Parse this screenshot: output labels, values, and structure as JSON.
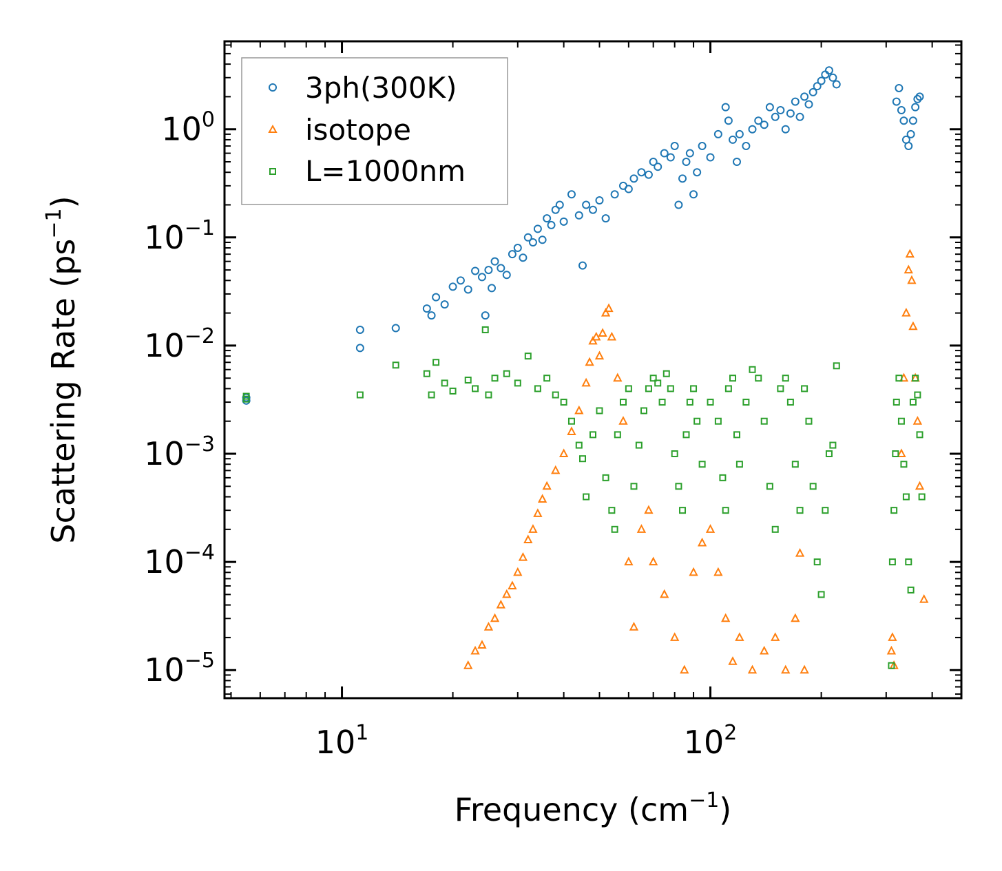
{
  "chart_data": {
    "type": "scatter",
    "title": "",
    "xlabel": "Frequency (cm",
    "xlabel_sup": "−1",
    "xlabel_end": ")",
    "ylabel": "Scattering Rate (ps",
    "ylabel_sup": "−1",
    "ylabel_end": ")",
    "xscale": "log",
    "yscale": "log",
    "xlim": [
      4.8,
      480
    ],
    "ylim": [
      5.5e-06,
      6.5
    ],
    "x_ticks": [
      {
        "value": 10,
        "base": "10",
        "exp": "1"
      },
      {
        "value": 100,
        "base": "10",
        "exp": "2"
      }
    ],
    "y_ticks": [
      {
        "value": 1,
        "base": "10",
        "exp": "0"
      },
      {
        "value": 0.1,
        "base": "10",
        "exp": "−1"
      },
      {
        "value": 0.01,
        "base": "10",
        "exp": "−2"
      },
      {
        "value": 0.001,
        "base": "10",
        "exp": "−3"
      },
      {
        "value": 0.0001,
        "base": "10",
        "exp": "−4"
      },
      {
        "value": 1e-05,
        "base": "10",
        "exp": "−5"
      }
    ],
    "legend_position": "upper-left",
    "series": [
      {
        "name": "3ph(300K)",
        "marker": "circle",
        "color": "#1f77b4",
        "points": [
          [
            5.5,
            0.0033
          ],
          [
            5.5,
            0.0031
          ],
          [
            11.2,
            0.0095
          ],
          [
            11.2,
            0.014
          ],
          [
            14,
            0.0145
          ],
          [
            17,
            0.022
          ],
          [
            17.5,
            0.019
          ],
          [
            18,
            0.028
          ],
          [
            19,
            0.024
          ],
          [
            20,
            0.035
          ],
          [
            21,
            0.04
          ],
          [
            22,
            0.033
          ],
          [
            23,
            0.049
          ],
          [
            24,
            0.043
          ],
          [
            24.5,
            0.019
          ],
          [
            25,
            0.05
          ],
          [
            25.5,
            0.034
          ],
          [
            26,
            0.06
          ],
          [
            27,
            0.052
          ],
          [
            28,
            0.045
          ],
          [
            29,
            0.07
          ],
          [
            30,
            0.08
          ],
          [
            31,
            0.065
          ],
          [
            32,
            0.1
          ],
          [
            33,
            0.09
          ],
          [
            34,
            0.12
          ],
          [
            35,
            0.095
          ],
          [
            36,
            0.15
          ],
          [
            37,
            0.13
          ],
          [
            38,
            0.18
          ],
          [
            39,
            0.2
          ],
          [
            40,
            0.14
          ],
          [
            42,
            0.25
          ],
          [
            44,
            0.16
          ],
          [
            45,
            0.055
          ],
          [
            46,
            0.2
          ],
          [
            48,
            0.18
          ],
          [
            50,
            0.22
          ],
          [
            52,
            0.15
          ],
          [
            55,
            0.25
          ],
          [
            58,
            0.3
          ],
          [
            60,
            0.28
          ],
          [
            62,
            0.35
          ],
          [
            65,
            0.4
          ],
          [
            68,
            0.38
          ],
          [
            70,
            0.5
          ],
          [
            72,
            0.45
          ],
          [
            75,
            0.6
          ],
          [
            78,
            0.55
          ],
          [
            80,
            0.7
          ],
          [
            82,
            0.2
          ],
          [
            84,
            0.35
          ],
          [
            86,
            0.5
          ],
          [
            88,
            0.6
          ],
          [
            90,
            0.25
          ],
          [
            92,
            0.4
          ],
          [
            95,
            0.7
          ],
          [
            100,
            0.55
          ],
          [
            105,
            0.9
          ],
          [
            110,
            1.6
          ],
          [
            112,
            1.2
          ],
          [
            115,
            0.8
          ],
          [
            118,
            0.5
          ],
          [
            120,
            0.9
          ],
          [
            125,
            0.7
          ],
          [
            130,
            1.0
          ],
          [
            135,
            1.2
          ],
          [
            140,
            1.1
          ],
          [
            145,
            1.6
          ],
          [
            150,
            1.3
          ],
          [
            155,
            1.5
          ],
          [
            160,
            1.0
          ],
          [
            165,
            1.4
          ],
          [
            170,
            1.8
          ],
          [
            175,
            1.3
          ],
          [
            180,
            2.0
          ],
          [
            185,
            1.7
          ],
          [
            190,
            2.2
          ],
          [
            195,
            2.5
          ],
          [
            200,
            2.8
          ],
          [
            205,
            3.2
          ],
          [
            210,
            3.5
          ],
          [
            215,
            3.0
          ],
          [
            220,
            2.6
          ],
          [
            320,
            1.8
          ],
          [
            325,
            2.4
          ],
          [
            330,
            1.5
          ],
          [
            335,
            1.2
          ],
          [
            340,
            0.8
          ],
          [
            345,
            0.7
          ],
          [
            350,
            0.9
          ],
          [
            355,
            1.2
          ],
          [
            360,
            1.6
          ],
          [
            365,
            1.9
          ],
          [
            370,
            2.0
          ]
        ]
      },
      {
        "name": "isotope",
        "marker": "triangle",
        "color": "#ff7f0e",
        "points": [
          [
            22,
            1.1e-05
          ],
          [
            23,
            1.5e-05
          ],
          [
            24,
            1.7e-05
          ],
          [
            25,
            2.5e-05
          ],
          [
            26,
            3e-05
          ],
          [
            27,
            4e-05
          ],
          [
            28,
            5e-05
          ],
          [
            29,
            6e-05
          ],
          [
            30,
            8e-05
          ],
          [
            31,
            0.00011
          ],
          [
            32,
            0.00016
          ],
          [
            33,
            0.0002
          ],
          [
            34,
            0.00028
          ],
          [
            35,
            0.00038
          ],
          [
            36,
            0.0005
          ],
          [
            38,
            0.0007
          ],
          [
            40,
            0.001
          ],
          [
            42,
            0.0016
          ],
          [
            44,
            0.0025
          ],
          [
            46,
            0.0045
          ],
          [
            47,
            0.007
          ],
          [
            48,
            0.011
          ],
          [
            49,
            0.012
          ],
          [
            50,
            0.008
          ],
          [
            51,
            0.013
          ],
          [
            52,
            0.02
          ],
          [
            53,
            0.022
          ],
          [
            54,
            0.012
          ],
          [
            56,
            0.005
          ],
          [
            58,
            0.002
          ],
          [
            60,
            0.0001
          ],
          [
            62,
            2.5e-05
          ],
          [
            65,
            0.0002
          ],
          [
            68,
            0.0003
          ],
          [
            70,
            0.0001
          ],
          [
            75,
            5e-05
          ],
          [
            80,
            2e-05
          ],
          [
            85,
            1e-05
          ],
          [
            90,
            8e-05
          ],
          [
            95,
            0.00015
          ],
          [
            100,
            0.0002
          ],
          [
            105,
            8e-05
          ],
          [
            110,
            3e-05
          ],
          [
            115,
            1.2e-05
          ],
          [
            120,
            2e-05
          ],
          [
            130,
            1e-05
          ],
          [
            140,
            1.5e-05
          ],
          [
            150,
            2e-05
          ],
          [
            160,
            1e-05
          ],
          [
            170,
            3e-05
          ],
          [
            175,
            0.00012
          ],
          [
            180,
            1e-05
          ],
          [
            310,
            1.5e-05
          ],
          [
            312,
            2e-05
          ],
          [
            315,
            1.1e-05
          ],
          [
            330,
            0.001
          ],
          [
            335,
            0.005
          ],
          [
            340,
            0.02
          ],
          [
            345,
            0.05
          ],
          [
            348,
            0.07
          ],
          [
            352,
            0.04
          ],
          [
            355,
            0.015
          ],
          [
            360,
            0.005
          ],
          [
            365,
            0.002
          ],
          [
            370,
            0.0005
          ],
          [
            380,
            4.5e-05
          ]
        ]
      },
      {
        "name": "L=1000nm",
        "marker": "square",
        "color": "#2ca02c",
        "points": [
          [
            5.5,
            0.0034
          ],
          [
            5.5,
            0.0032
          ],
          [
            11.2,
            0.0035
          ],
          [
            14,
            0.0066
          ],
          [
            17,
            0.0055
          ],
          [
            17.5,
            0.0035
          ],
          [
            18,
            0.007
          ],
          [
            19,
            0.0045
          ],
          [
            20,
            0.0038
          ],
          [
            22,
            0.0048
          ],
          [
            23,
            0.004
          ],
          [
            24.5,
            0.014
          ],
          [
            25,
            0.0035
          ],
          [
            26,
            0.005
          ],
          [
            28,
            0.0055
          ],
          [
            30,
            0.0045
          ],
          [
            32,
            0.008
          ],
          [
            34,
            0.004
          ],
          [
            36,
            0.005
          ],
          [
            38,
            0.0035
          ],
          [
            40,
            0.003
          ],
          [
            42,
            0.002
          ],
          [
            44,
            0.0012
          ],
          [
            45,
            0.0009
          ],
          [
            46,
            0.0004
          ],
          [
            48,
            0.0015
          ],
          [
            50,
            0.0025
          ],
          [
            52,
            0.0006
          ],
          [
            54,
            0.0003
          ],
          [
            55,
            0.0002
          ],
          [
            56,
            0.0015
          ],
          [
            58,
            0.003
          ],
          [
            60,
            0.004
          ],
          [
            62,
            0.0005
          ],
          [
            64,
            0.0012
          ],
          [
            66,
            0.0025
          ],
          [
            68,
            0.004
          ],
          [
            70,
            0.005
          ],
          [
            72,
            0.0045
          ],
          [
            74,
            0.003
          ],
          [
            76,
            0.0055
          ],
          [
            78,
            0.004
          ],
          [
            80,
            0.001
          ],
          [
            82,
            0.0005
          ],
          [
            84,
            0.0003
          ],
          [
            86,
            0.0015
          ],
          [
            88,
            0.003
          ],
          [
            90,
            0.004
          ],
          [
            92,
            0.002
          ],
          [
            95,
            0.0008
          ],
          [
            100,
            0.003
          ],
          [
            105,
            0.002
          ],
          [
            108,
            0.0006
          ],
          [
            110,
            0.0003
          ],
          [
            112,
            0.004
          ],
          [
            115,
            0.005
          ],
          [
            118,
            0.0015
          ],
          [
            120,
            0.0008
          ],
          [
            125,
            0.003
          ],
          [
            130,
            0.006
          ],
          [
            135,
            0.005
          ],
          [
            140,
            0.002
          ],
          [
            145,
            0.0005
          ],
          [
            150,
            0.0002
          ],
          [
            155,
            0.004
          ],
          [
            160,
            0.005
          ],
          [
            165,
            0.003
          ],
          [
            170,
            0.0008
          ],
          [
            175,
            0.0003
          ],
          [
            180,
            0.004
          ],
          [
            185,
            0.002
          ],
          [
            190,
            0.0005
          ],
          [
            195,
            0.0001
          ],
          [
            200,
            5e-05
          ],
          [
            205,
            0.0003
          ],
          [
            210,
            0.001
          ],
          [
            215,
            0.0012
          ],
          [
            220,
            0.0065
          ],
          [
            310,
            1.1e-05
          ],
          [
            312,
            0.0001
          ],
          [
            315,
            0.0003
          ],
          [
            318,
            0.001
          ],
          [
            320,
            0.003
          ],
          [
            325,
            0.005
          ],
          [
            330,
            0.002
          ],
          [
            335,
            0.0008
          ],
          [
            340,
            0.0004
          ],
          [
            345,
            0.0001
          ],
          [
            350,
            5.5e-05
          ],
          [
            355,
            0.003
          ],
          [
            360,
            0.005
          ],
          [
            365,
            0.0035
          ],
          [
            370,
            0.0015
          ],
          [
            375,
            0.0004
          ]
        ]
      }
    ]
  }
}
